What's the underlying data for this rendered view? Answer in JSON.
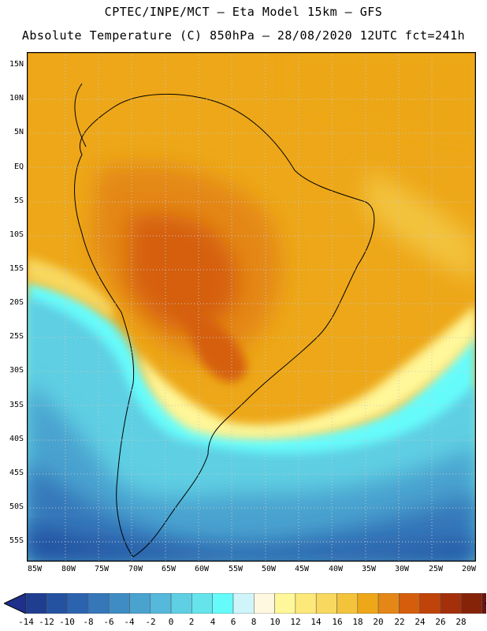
{
  "header": {
    "line1": "CPTEC/INPE/MCT –  Eta Model 15km – GFS",
    "line2": "Absolute Temperature (C) 850hPa – 28/08/2020 12UTC fct=241h"
  },
  "map": {
    "lat_labels": [
      "15N",
      "10N",
      "5N",
      "EQ",
      "5S",
      "10S",
      "15S",
      "20S",
      "25S",
      "30S",
      "35S",
      "40S",
      "45S",
      "50S",
      "55S"
    ],
    "lon_labels": [
      "85W",
      "80W",
      "75W",
      "70W",
      "65W",
      "60W",
      "55W",
      "50W",
      "45W",
      "40W",
      "35W",
      "30W",
      "25W",
      "20W"
    ],
    "lat_values": [
      15,
      10,
      5,
      0,
      -5,
      -10,
      -15,
      -20,
      -25,
      -30,
      -35,
      -40,
      -45,
      -50,
      -55
    ],
    "lon_values": [
      -85,
      -80,
      -75,
      -70,
      -65,
      -60,
      -55,
      -50,
      -45,
      -40,
      -35,
      -30,
      -25,
      -20
    ]
  },
  "colorbar": {
    "labels": [
      "-14",
      "-12",
      "-10",
      "-8",
      "-6",
      "-4",
      "-2",
      "0",
      "2",
      "4",
      "6",
      "8",
      "10",
      "12",
      "14",
      "16",
      "18",
      "20",
      "22",
      "24",
      "26",
      "28"
    ],
    "colors": [
      "#1f3e8f",
      "#2451a0",
      "#2c63ae",
      "#3577b9",
      "#3f8cc4",
      "#4aa2cf",
      "#56b8da",
      "#5fcfe3",
      "#66e4ec",
      "#66fbfb",
      "#cff5fb",
      "#fff8e1",
      "#fff799",
      "#fde97a",
      "#f8d85e",
      "#f3c33c",
      "#eda718",
      "#e48716",
      "#d55e0c",
      "#c0430a",
      "#a3300a",
      "#842308",
      "#6b1414"
    ],
    "under_color": "#1e2f8c",
    "over_color": "#7a0a1a"
  }
}
